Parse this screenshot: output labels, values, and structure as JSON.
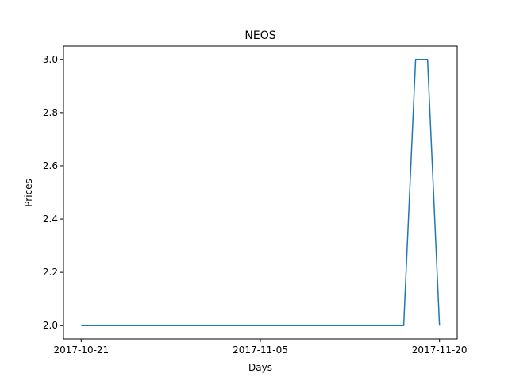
{
  "chart_data": {
    "type": "line",
    "title": "NEOS",
    "xlabel": "Days",
    "ylabel": "Prices",
    "x": [
      "2017-10-21",
      "2017-10-22",
      "2017-10-23",
      "2017-10-24",
      "2017-10-25",
      "2017-10-26",
      "2017-10-27",
      "2017-10-28",
      "2017-10-29",
      "2017-10-30",
      "2017-10-31",
      "2017-11-01",
      "2017-11-02",
      "2017-11-03",
      "2017-11-04",
      "2017-11-05",
      "2017-11-06",
      "2017-11-07",
      "2017-11-08",
      "2017-11-09",
      "2017-11-10",
      "2017-11-11",
      "2017-11-12",
      "2017-11-13",
      "2017-11-14",
      "2017-11-15",
      "2017-11-16",
      "2017-11-17",
      "2017-11-18",
      "2017-11-19",
      "2017-11-20"
    ],
    "series": [
      {
        "values": [
          2,
          2,
          2,
          2,
          2,
          2,
          2,
          2,
          2,
          2,
          2,
          2,
          2,
          2,
          2,
          2,
          2,
          2,
          2,
          2,
          2,
          2,
          2,
          2,
          2,
          2,
          2,
          2,
          3,
          3,
          2
        ]
      }
    ],
    "x_ticks": [
      "2017-10-21",
      "2017-11-05",
      "2017-11-20"
    ],
    "y_ticks": [
      "2.0",
      "2.2",
      "2.4",
      "2.6",
      "2.8",
      "3.0"
    ],
    "ylim": [
      1.95,
      3.05
    ],
    "grid": false,
    "line_color": "#1f77b4"
  }
}
